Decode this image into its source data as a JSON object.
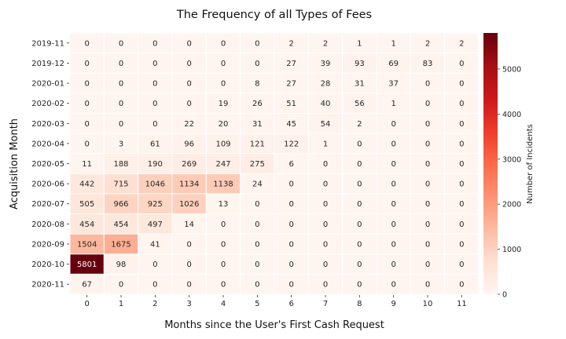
{
  "chart_data": {
    "type": "heatmap",
    "title": "The Frequency of all Types of Fees",
    "xlabel": "Months since the User's First Cash Request",
    "ylabel": "Acquisition Month",
    "colorbar_label": "Number of Incidents",
    "colorbar_ticks": [
      0,
      1000,
      2000,
      3000,
      4000,
      5000
    ],
    "vmin": 0,
    "vmax": 5801,
    "colormap": [
      "#fff5f0",
      "#fee0d2",
      "#fcbba1",
      "#fc9272",
      "#fb6a4a",
      "#ef3b2c",
      "#cb181d",
      "#a50f15",
      "#67000d"
    ],
    "x": [
      "0",
      "1",
      "2",
      "3",
      "4",
      "5",
      "6",
      "7",
      "8",
      "9",
      "10",
      "11"
    ],
    "y": [
      "2019-11",
      "2019-12",
      "2020-01",
      "2020-02",
      "2020-03",
      "2020-04",
      "2020-05",
      "2020-06",
      "2020-07",
      "2020-08",
      "2020-09",
      "2020-10",
      "2020-11"
    ],
    "values": [
      [
        0,
        0,
        0,
        0,
        0,
        0,
        2,
        2,
        1,
        1,
        2,
        2
      ],
      [
        0,
        0,
        0,
        0,
        0,
        0,
        27,
        39,
        93,
        69,
        83,
        0
      ],
      [
        0,
        0,
        0,
        0,
        0,
        8,
        27,
        28,
        31,
        37,
        0,
        0
      ],
      [
        0,
        0,
        0,
        0,
        19,
        26,
        51,
        40,
        56,
        1,
        0,
        0
      ],
      [
        0,
        0,
        0,
        22,
        20,
        31,
        45,
        54,
        2,
        0,
        0,
        0
      ],
      [
        0,
        3,
        61,
        96,
        109,
        121,
        122,
        1,
        0,
        0,
        0,
        0
      ],
      [
        11,
        188,
        190,
        269,
        247,
        275,
        6,
        0,
        0,
        0,
        0,
        0
      ],
      [
        442,
        715,
        1046,
        1134,
        1138,
        24,
        0,
        0,
        0,
        0,
        0,
        0
      ],
      [
        505,
        966,
        925,
        1026,
        13,
        0,
        0,
        0,
        0,
        0,
        0,
        0
      ],
      [
        454,
        454,
        497,
        14,
        0,
        0,
        0,
        0,
        0,
        0,
        0,
        0
      ],
      [
        1504,
        1675,
        41,
        0,
        0,
        0,
        0,
        0,
        0,
        0,
        0,
        0
      ],
      [
        5801,
        98,
        0,
        0,
        0,
        0,
        0,
        0,
        0,
        0,
        0,
        0
      ],
      [
        67,
        0,
        0,
        0,
        0,
        0,
        0,
        0,
        0,
        0,
        0,
        0
      ]
    ]
  }
}
